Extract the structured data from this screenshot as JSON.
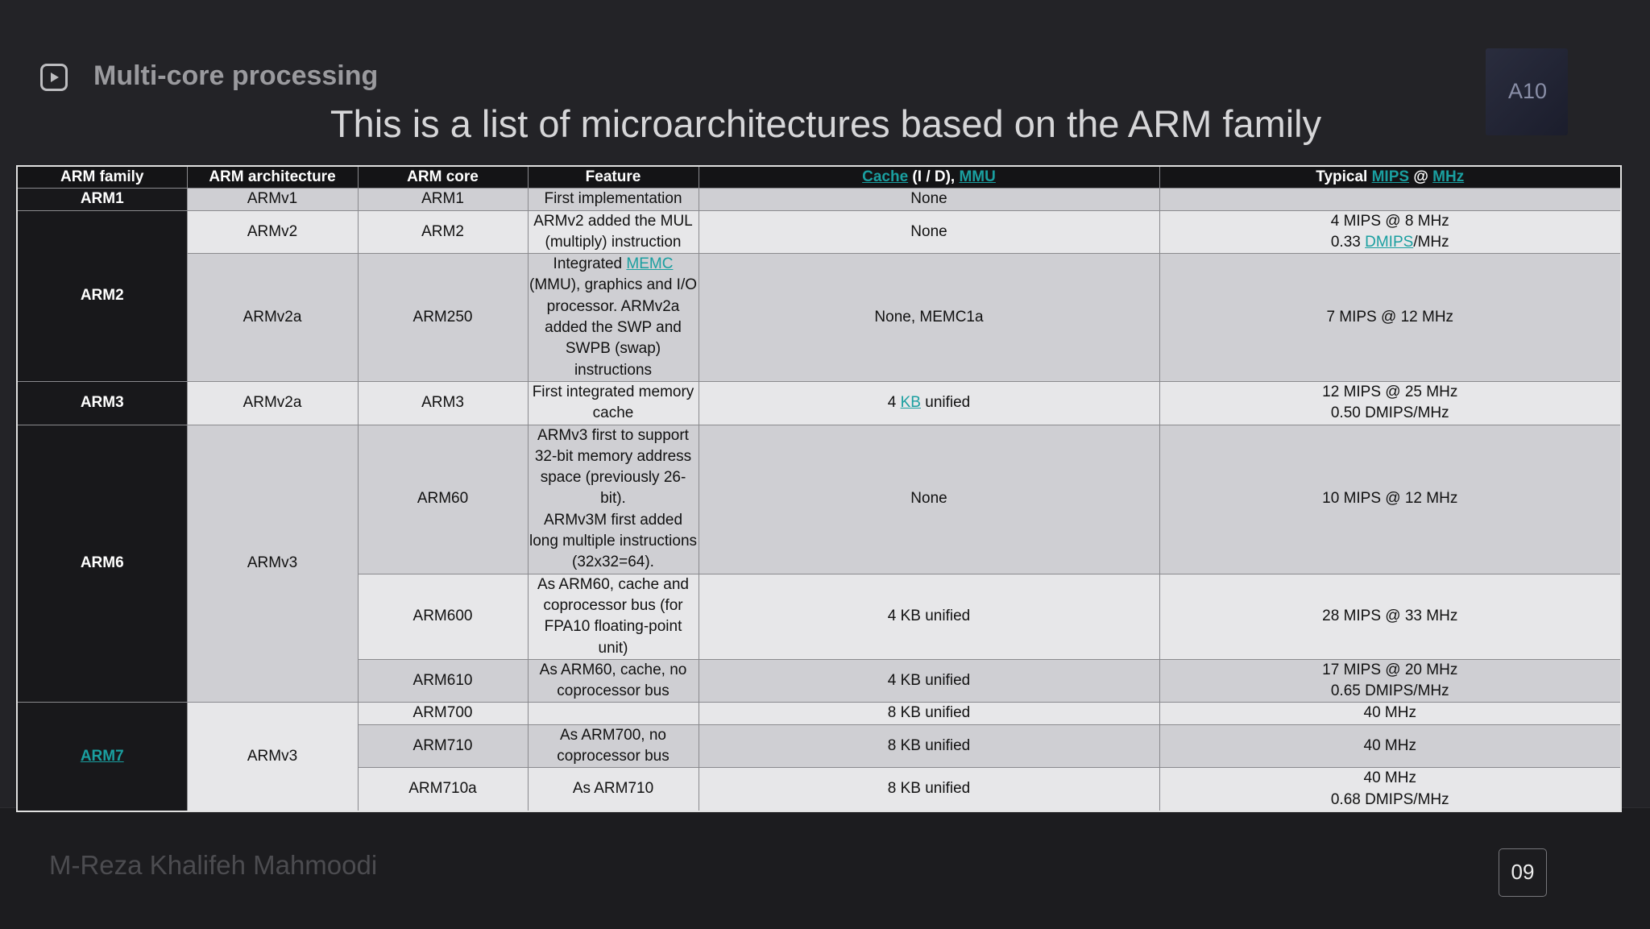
{
  "header": {
    "section": "Multi-core processing",
    "title": "This is a list of microarchitectures based on the ARM family",
    "chip_label": "A10"
  },
  "table": {
    "columns": [
      "ARM family",
      "ARM architecture",
      "ARM core",
      "Feature",
      [
        [
          {
            "link": "Cache"
          },
          " (I / D), ",
          {
            "link": "MMU"
          }
        ]
      ],
      [
        [
          "Typical ",
          {
            "link": "MIPS"
          },
          " @ ",
          {
            "link": "MHz"
          }
        ]
      ]
    ],
    "families": [
      {
        "family": "ARM1",
        "architectures": [
          {
            "architecture": "ARMv1",
            "cores": [
              {
                "core": "ARM1",
                "feature": "First implementation",
                "cache": "None"
              }
            ]
          }
        ]
      },
      {
        "family": "ARM2",
        "architectures": [
          {
            "architecture": "ARMv2",
            "cores": [
              {
                "core": "ARM2",
                "feature": "ARMv2 added the MUL (multiply) instruction",
                "cache": "None",
                "mips": [
                  "4 MIPS @ 8 MHz",
                  [
                    "0.33 ",
                    {
                      "link": "DMIPS"
                    },
                    "/MHz"
                  ]
                ]
              }
            ]
          },
          {
            "architecture": "ARMv2a",
            "cores": [
              {
                "core": "ARM250",
                "feature": [
                  [
                    "Integrated ",
                    {
                      "link": "MEMC"
                    },
                    " (MMU), graphics and I/O processor. ARMv2a added the SWP and SWPB (swap) instructions"
                  ]
                ],
                "cache": "None, MEMC1a",
                "mips": "7 MIPS @ 12 MHz"
              }
            ]
          }
        ]
      },
      {
        "family": "ARM3",
        "architectures": [
          {
            "architecture": "ARMv2a",
            "cores": [
              {
                "core": "ARM3",
                "feature": "First integrated memory cache",
                "cache": [
                  [
                    "4 ",
                    {
                      "link": "KB"
                    },
                    " unified"
                  ]
                ],
                "mips": [
                  "12 MIPS @ 25 MHz",
                  "0.50 DMIPS/MHz"
                ]
              }
            ]
          }
        ]
      },
      {
        "family": "ARM6",
        "architectures": [
          {
            "architecture": "ARMv3",
            "cores": [
              {
                "core": "ARM60",
                "feature": [
                  "ARMv3 first to support 32-bit memory address space (previously 26-bit).",
                  "ARMv3M first added long multiple instructions (32x32=64)."
                ],
                "cache": "None",
                "mips": "10 MIPS @ 12 MHz"
              },
              {
                "core": "ARM600",
                "feature": "As ARM60, cache and coprocessor bus (for FPA10 floating-point unit)",
                "cache": "4 KB unified",
                "mips": "28 MIPS @ 33 MHz"
              },
              {
                "core": "ARM610",
                "feature": "As ARM60, cache, no coprocessor bus",
                "cache": "4 KB unified",
                "mips": [
                  "17 MIPS @ 20 MHz",
                  "0.65 DMIPS/MHz"
                ]
              }
            ]
          }
        ]
      },
      {
        "family": {
          "link": "ARM7"
        },
        "architectures": [
          {
            "architecture": "ARMv3",
            "cores": [
              {
                "core": "ARM700",
                "cache": "8 KB unified",
                "mips": "40 MHz"
              },
              {
                "core": "ARM710",
                "feature": "As ARM700, no coprocessor bus",
                "cache": "8 KB unified",
                "mips": "40 MHz"
              },
              {
                "core": "ARM710a",
                "feature": "As ARM710",
                "cache": "8 KB unified",
                "mips": [
                  "40 MHz",
                  "0.68 DMIPS/MHz"
                ]
              }
            ]
          }
        ]
      }
    ]
  },
  "footer": {
    "author": "M-Reza Khalifeh Mahmoodi",
    "page": "09"
  }
}
